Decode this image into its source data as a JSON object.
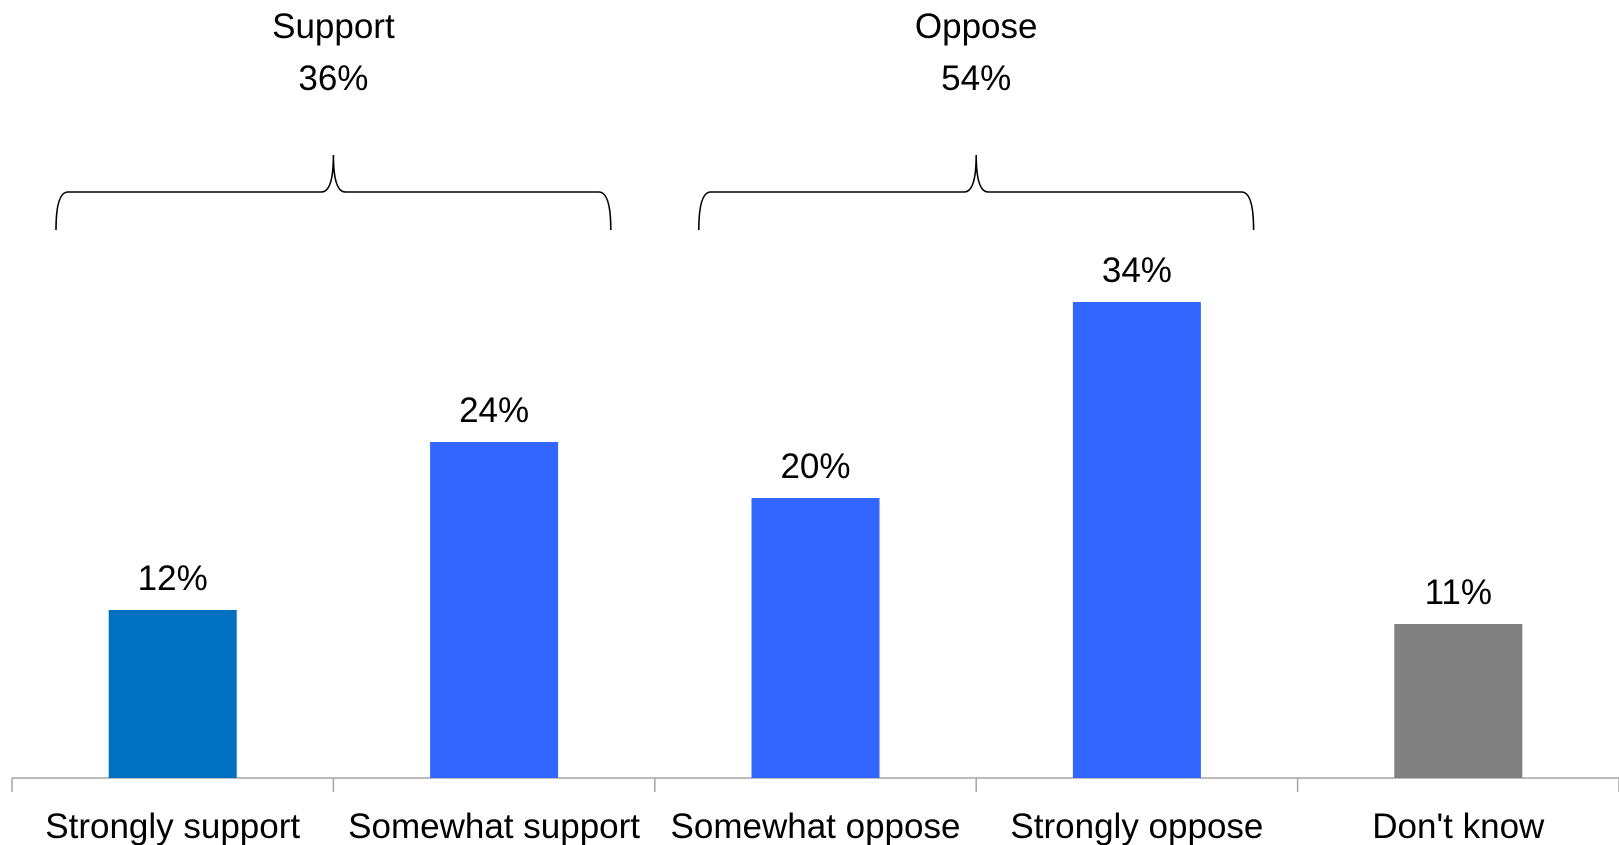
{
  "chart_data": {
    "type": "bar",
    "categories": [
      "Strongly support",
      "Somewhat support",
      "Somewhat oppose",
      "Strongly oppose",
      "Don't know"
    ],
    "values": [
      12,
      24,
      20,
      34,
      11
    ],
    "value_labels": [
      "12%",
      "24%",
      "20%",
      "34%",
      "11%"
    ],
    "bar_colors": [
      "#0070C0",
      "#3366FF",
      "#3366FF",
      "#3366FF",
      "#808080"
    ],
    "ylim": [
      0,
      36
    ],
    "grid": false,
    "legend": "none",
    "groups": [
      {
        "label": "Support",
        "value_label": "36%",
        "from": 0,
        "to": 1
      },
      {
        "label": "Oppose",
        "value_label": "54%",
        "from": 2,
        "to": 3
      }
    ]
  }
}
